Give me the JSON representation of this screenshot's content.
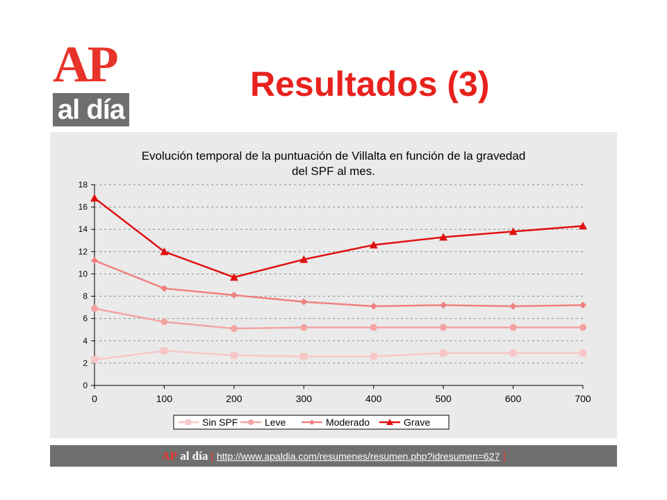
{
  "header": {
    "logo_top": "AP",
    "logo_bottom": "al día",
    "title": "Resultados  (3)"
  },
  "footer": {
    "brand_ap": "AP",
    "brand_rest": "al día",
    "bracket_open": "[",
    "url": "http://www.apaldia.com/resumenes/resumen.php?idresumen=627",
    "bracket_close": "]"
  },
  "colors": {
    "accent_red": "#e8211d",
    "footer_gray": "#6f6f6f",
    "chart_bg": "#eaeaea"
  },
  "chart_data": {
    "type": "line",
    "title_lines": [
      "Evolución temporal de la puntuación de Villalta en función de la gravedad",
      "del SPF al mes."
    ],
    "x": [
      0,
      100,
      200,
      300,
      400,
      500,
      600,
      700
    ],
    "xlim": [
      0,
      700
    ],
    "ylim": [
      0,
      18
    ],
    "xticks": [
      0,
      100,
      200,
      300,
      400,
      500,
      600,
      700
    ],
    "yticks": [
      0,
      2,
      4,
      6,
      8,
      10,
      12,
      14,
      16,
      18
    ],
    "grid": true,
    "legend_position": "bottom",
    "series": [
      {
        "name": "Sin SPF",
        "color": "#f8c6c6",
        "marker": "square",
        "values": [
          2.3,
          3.1,
          2.7,
          2.6,
          2.6,
          2.9,
          2.9,
          2.9
        ]
      },
      {
        "name": "Leve",
        "color": "#f4a3a3",
        "marker": "circle",
        "values": [
          6.9,
          5.7,
          5.1,
          5.2,
          5.2,
          5.2,
          5.2,
          5.2
        ]
      },
      {
        "name": "Moderado",
        "color": "#ef8080",
        "marker": "diamond",
        "values": [
          11.2,
          8.7,
          8.1,
          7.5,
          7.1,
          7.2,
          7.1,
          7.2
        ]
      },
      {
        "name": "Grave",
        "color": "#e01010",
        "marker": "triangle",
        "values": [
          16.8,
          12.0,
          9.7,
          11.3,
          12.6,
          13.3,
          13.8,
          14.3
        ]
      }
    ]
  }
}
